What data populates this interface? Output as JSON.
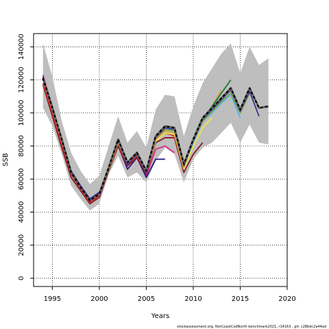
{
  "chart_data": {
    "type": "line",
    "title": "",
    "xlabel": "Years",
    "ylabel": "SSB",
    "xlim": [
      1993,
      2020
    ],
    "ylim": [
      -5000,
      148000
    ],
    "x_ticks": [
      1995,
      2000,
      2005,
      2010,
      2015,
      2020
    ],
    "x_tick_labels": [
      "1995",
      "2000",
      "2005",
      "2010",
      "2015",
      "2020"
    ],
    "y_ticks": [
      0,
      20000,
      40000,
      60000,
      80000,
      100000,
      120000,
      140000
    ],
    "y_tick_labels": [
      "0",
      "20000",
      "40000",
      "60000",
      "80000",
      "100000",
      "120000",
      "140000"
    ],
    "grid": true,
    "grid_style": "dotted",
    "footnote": "stockassessment.org,  NorCoastCodNorth  benchmark2021,  r14163 ,  git:  c28bdc2a44ad",
    "band": {
      "color": "#bebebe",
      "x": [
        1994,
        1995,
        1996,
        1997,
        1998,
        1999,
        2000,
        2001,
        2002,
        2003,
        2004,
        2005,
        2006,
        2007,
        2008,
        2009,
        2010,
        2011,
        2012,
        2013,
        2014,
        2015,
        2016,
        2017,
        2018
      ],
      "upper": [
        142000,
        122000,
        95000,
        76000,
        65000,
        57000,
        62000,
        80000,
        98000,
        82000,
        89000,
        79000,
        102000,
        111000,
        110000,
        86000,
        104000,
        118000,
        127000,
        136000,
        142000,
        124000,
        140000,
        129000,
        133000
      ],
      "lower": [
        103000,
        92000,
        75000,
        56000,
        48000,
        41000,
        45000,
        63000,
        74000,
        61000,
        64000,
        58000,
        71000,
        79000,
        75000,
        58000,
        72000,
        79000,
        82000,
        88000,
        94000,
        82000,
        93000,
        82000,
        81000
      ]
    },
    "series": [
      {
        "color": "#dd2b8a",
        "dashed": false,
        "x": [
          1994,
          1995,
          1996,
          1997,
          1998,
          1999,
          2000,
          2001,
          2002,
          2003,
          2004,
          2005,
          2006,
          2007,
          2008
        ],
        "values": [
          123000,
          103000,
          83000,
          64000,
          56000,
          48000,
          52000,
          67000,
          80000,
          66000,
          73000,
          62000,
          78000,
          80000,
          76000
        ]
      },
      {
        "color": "#2e1a87",
        "dashed": false,
        "x": [
          1994,
          1995,
          1996,
          1997,
          1998,
          1999,
          2000,
          2001,
          2002,
          2003,
          2004,
          2005,
          2006,
          2007
        ],
        "values": [
          122000,
          104000,
          84000,
          65000,
          56000,
          48000,
          52000,
          67000,
          81000,
          66000,
          73000,
          61000,
          72000,
          72000
        ]
      },
      {
        "color": "#8a1620",
        "dashed": false,
        "x": [
          1994,
          1995,
          1996,
          1997,
          1998,
          1999,
          2000,
          2001,
          2002,
          2003,
          2004,
          2005,
          2006,
          2007,
          2008,
          2009,
          2010,
          2011
        ],
        "values": [
          117000,
          98000,
          79000,
          61000,
          53000,
          45000,
          49000,
          65000,
          80000,
          68000,
          73000,
          63000,
          82000,
          85000,
          85000,
          64000,
          75000,
          82000
        ]
      },
      {
        "color": "#d62728",
        "dashed": false,
        "x": [
          1994,
          1995,
          1996,
          1997,
          1998,
          1999,
          2000,
          2001,
          2002,
          2003,
          2004,
          2005,
          2006,
          2007,
          2008,
          2009
        ],
        "values": [
          118000,
          100000,
          81000,
          63000,
          54000,
          46000,
          50000,
          66000,
          82000,
          69000,
          74000,
          64000,
          84000,
          88000,
          86000,
          67000
        ]
      },
      {
        "color": "#f0e442",
        "dashed": false,
        "x": [
          1994,
          1995,
          1996,
          1997,
          1998,
          1999,
          2000,
          2001,
          2002,
          2003,
          2004,
          2005,
          2006,
          2007,
          2008,
          2009,
          2010,
          2011,
          2012
        ],
        "values": [
          120000,
          102000,
          83000,
          64000,
          55000,
          47000,
          51000,
          66000,
          82000,
          69000,
          75000,
          64000,
          83000,
          88000,
          87000,
          66000,
          80000,
          91000,
          97000
        ]
      },
      {
        "color": "#d9a04a",
        "dashed": false,
        "x": [
          1994,
          1995,
          1996,
          1997,
          1998,
          1999,
          2000,
          2001,
          2002,
          2003,
          2004,
          2005,
          2006,
          2007,
          2008,
          2009,
          2010,
          2011,
          2012,
          2013
        ],
        "values": [
          121000,
          102000,
          83000,
          64000,
          55000,
          47000,
          51000,
          67000,
          82000,
          69000,
          75000,
          64000,
          84000,
          89000,
          88000,
          67000,
          83000,
          95000,
          104000,
          114000
        ]
      },
      {
        "color": "#1a7a2e",
        "dashed": false,
        "x": [
          1994,
          1995,
          1996,
          1997,
          1998,
          1999,
          2000,
          2001,
          2002,
          2003,
          2004,
          2005,
          2006,
          2007,
          2008,
          2009,
          2010,
          2011,
          2012,
          2013,
          2014
        ],
        "values": [
          121000,
          103000,
          84000,
          64000,
          55000,
          47000,
          51000,
          67000,
          83000,
          69000,
          75000,
          64000,
          85000,
          91000,
          90000,
          68000,
          84000,
          96000,
          104000,
          112000,
          120000
        ]
      },
      {
        "color": "#56b4e9",
        "dashed": false,
        "x": [
          1994,
          1995,
          1996,
          1997,
          1998,
          1999,
          2000,
          2001,
          2002,
          2003,
          2004,
          2005,
          2006,
          2007,
          2008,
          2009,
          2010,
          2011,
          2012,
          2013,
          2014,
          2015
        ],
        "values": [
          121000,
          103000,
          84000,
          64000,
          55000,
          47000,
          51000,
          67000,
          83000,
          69000,
          75000,
          64000,
          85000,
          90000,
          90000,
          68000,
          82000,
          95000,
          100000,
          106000,
          111000,
          97000
        ]
      },
      {
        "color": "#7aa63a",
        "dashed": false,
        "x": [
          1994,
          1995,
          1996,
          1997,
          1998,
          1999,
          2000,
          2001,
          2002,
          2003,
          2004,
          2005,
          2006,
          2007,
          2008,
          2009,
          2010,
          2011,
          2012,
          2013,
          2014,
          2015,
          2016
        ],
        "values": [
          121000,
          103000,
          84000,
          64000,
          55000,
          47000,
          51000,
          67000,
          83000,
          69000,
          75000,
          64000,
          85000,
          90000,
          89000,
          68000,
          83000,
          95000,
          101000,
          107000,
          112000,
          100000,
          112000
        ]
      },
      {
        "color": "#3b2f8f",
        "dashed": false,
        "x": [
          1994,
          1995,
          1996,
          1997,
          1998,
          1999,
          2000,
          2001,
          2002,
          2003,
          2004,
          2005,
          2006,
          2007,
          2008,
          2009,
          2010,
          2011,
          2012,
          2013,
          2014,
          2015,
          2016,
          2017
        ],
        "values": [
          121000,
          103000,
          84000,
          64000,
          55000,
          47000,
          51000,
          67000,
          83000,
          69000,
          75000,
          64000,
          85000,
          91000,
          90000,
          68000,
          83000,
          96000,
          102000,
          108000,
          114000,
          101000,
          113000,
          98000
        ]
      },
      {
        "color": "#000000",
        "dashed": true,
        "x": [
          1994,
          1995,
          1996,
          1997,
          1998,
          1999,
          2000,
          2001,
          2002,
          2003,
          2004,
          2005,
          2006,
          2007,
          2008,
          2009,
          2010,
          2011,
          2012,
          2013,
          2014,
          2015,
          2016,
          2017,
          2018
        ],
        "values": [
          121000,
          103000,
          84000,
          64000,
          55000,
          47000,
          51000,
          67000,
          84000,
          70000,
          76000,
          65000,
          86000,
          92000,
          91000,
          69000,
          84000,
          97000,
          103000,
          109000,
          115000,
          102000,
          115000,
          103000,
          104000
        ]
      }
    ]
  }
}
